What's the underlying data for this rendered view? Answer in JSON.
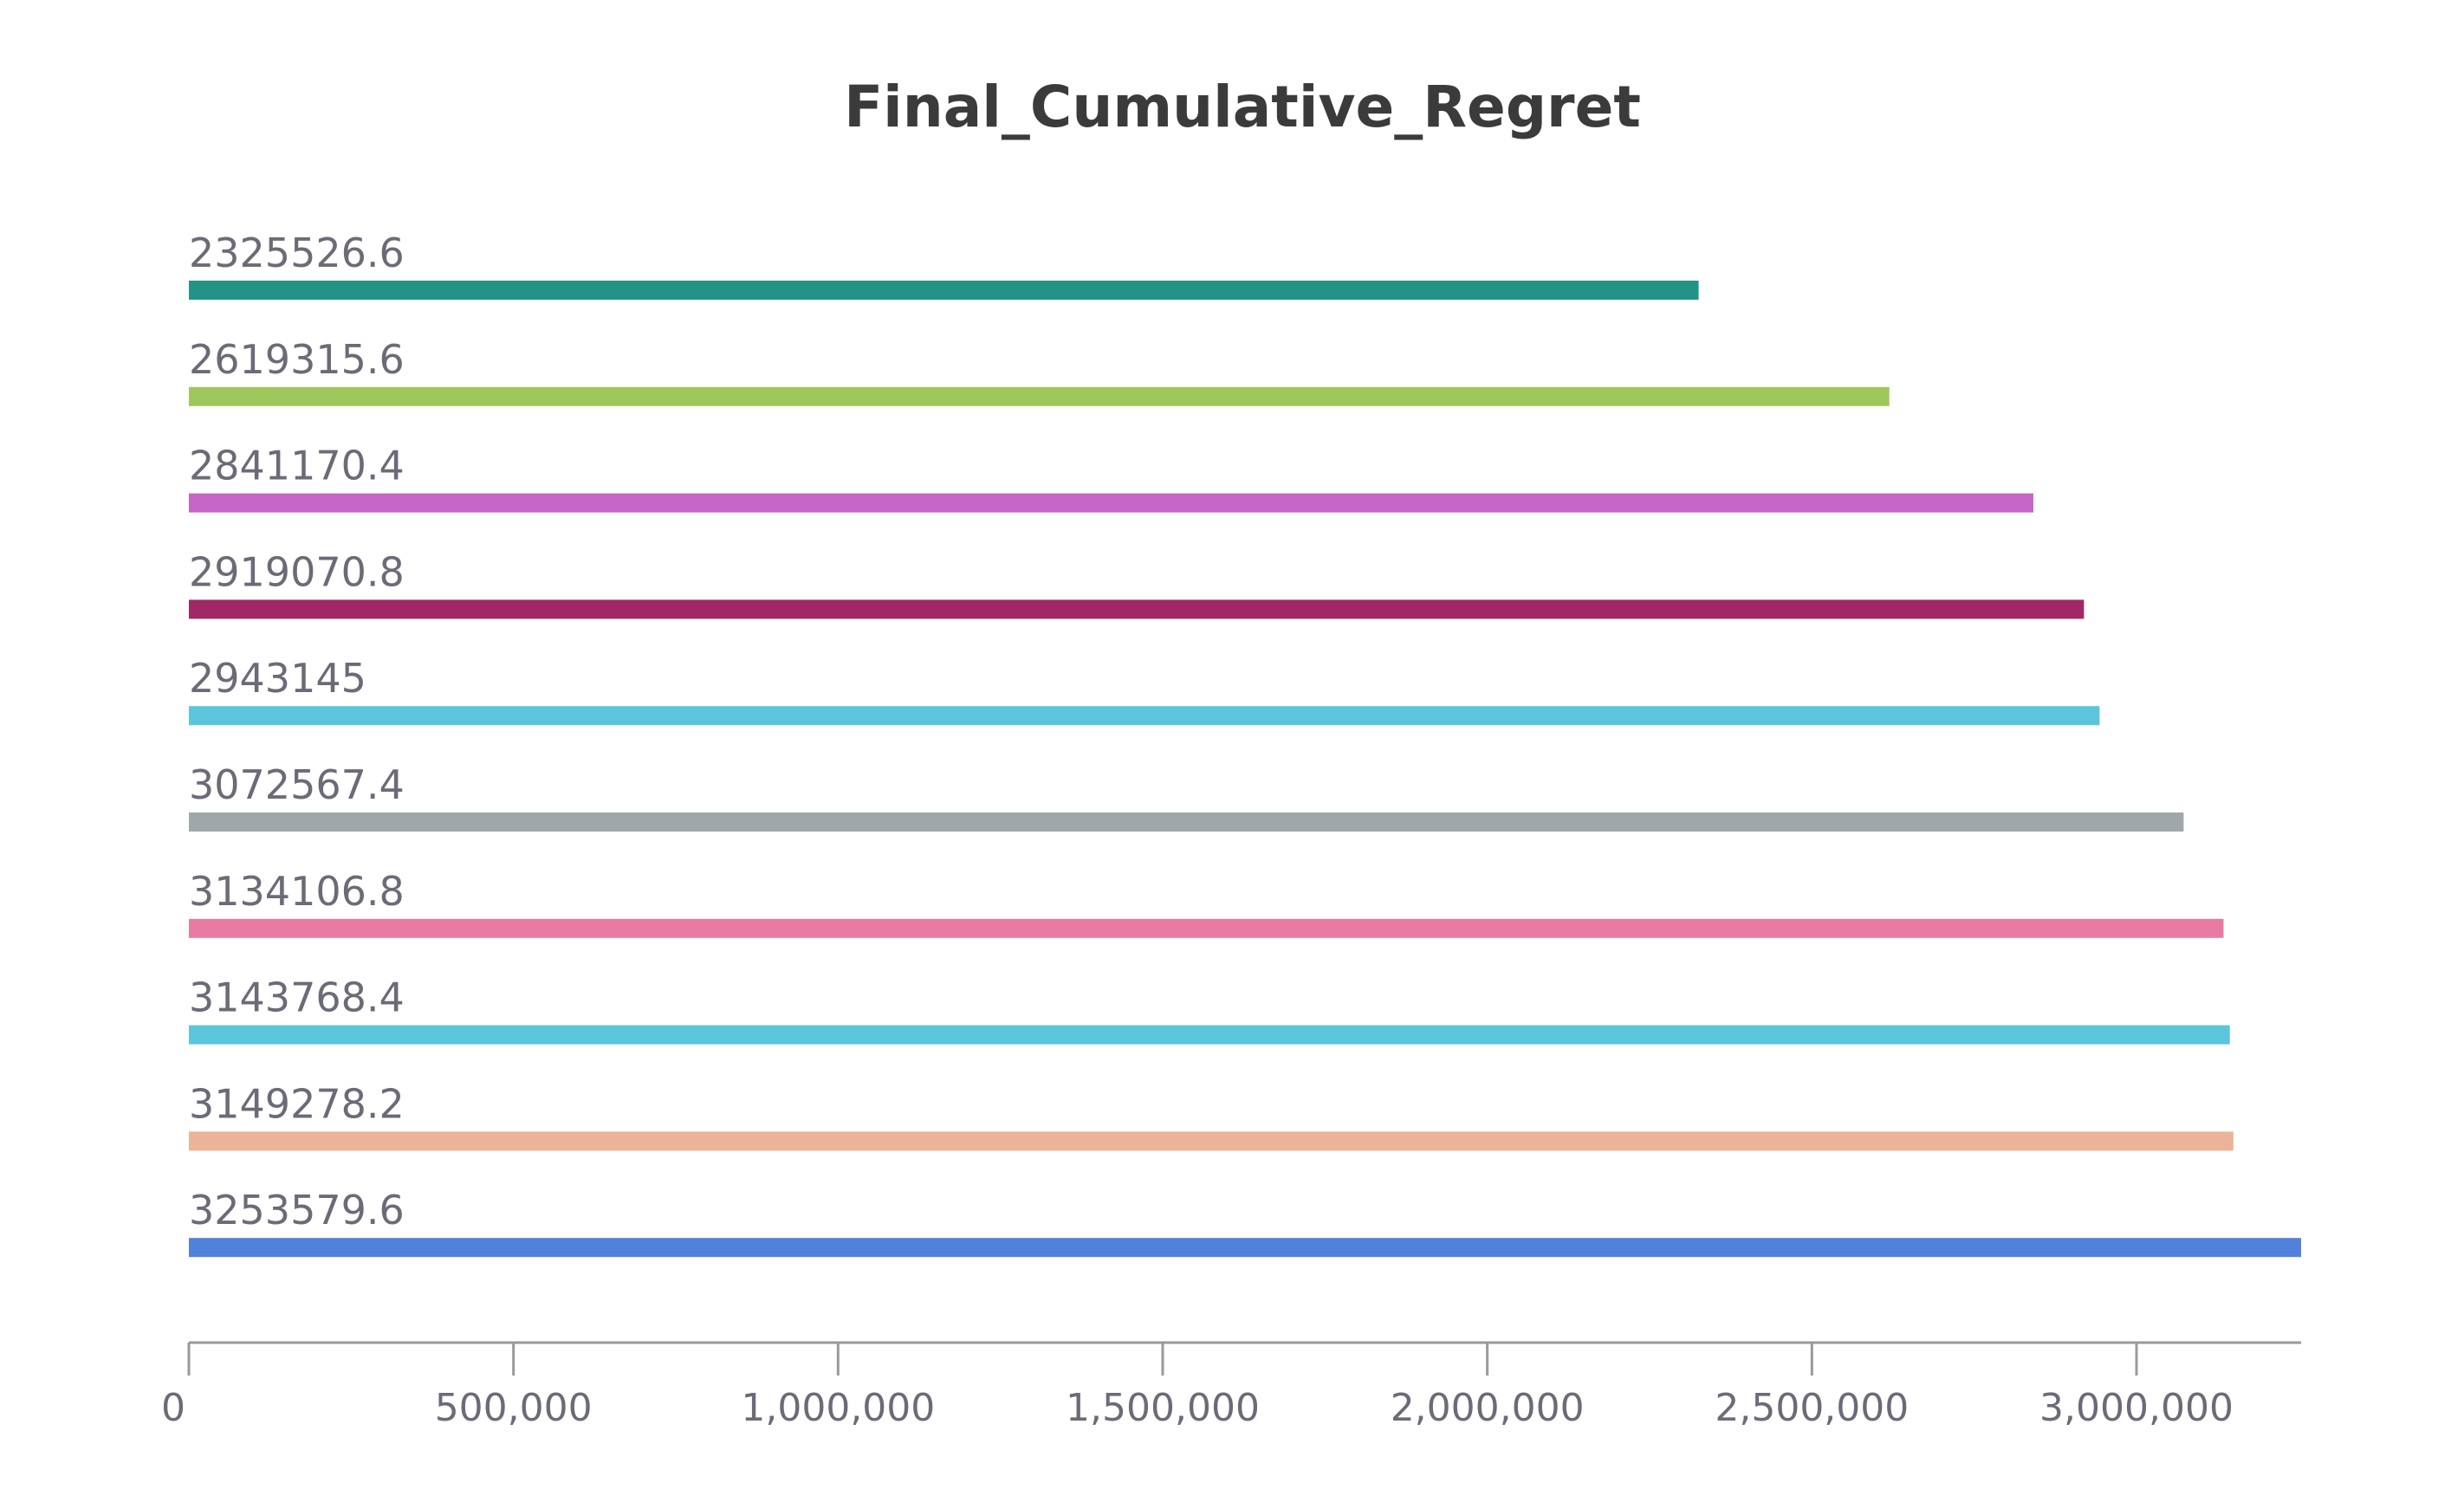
{
  "chart_data": {
    "type": "bar",
    "orientation": "horizontal",
    "title": "Final_Cumulative_Regret",
    "xlabel": "",
    "ylabel": "",
    "xlim": [
      0,
      3253579.6
    ],
    "grid": false,
    "legend": "none",
    "bars": [
      {
        "label": "2325526.6",
        "value": 2325526.6,
        "color": "#229487"
      },
      {
        "label": "2619315.6",
        "value": 2619315.6,
        "color": "#a0c75c"
      },
      {
        "label": "2841170.4",
        "value": 2841170.4,
        "color": "#c565c6"
      },
      {
        "label": "2919070.8",
        "value": 2919070.8,
        "color": "#a12864"
      },
      {
        "label": "2943145",
        "value": 2943145,
        "color": "#5bc5db"
      },
      {
        "label": "3072567.4",
        "value": 3072567.4,
        "color": "#a0a7a9"
      },
      {
        "label": "3134106.8",
        "value": 3134106.8,
        "color": "#e87ba1"
      },
      {
        "label": "3143768.4",
        "value": 3143768.4,
        "color": "#5bc5db"
      },
      {
        "label": "3149278.2",
        "value": 3149278.2,
        "color": "#ebb398"
      },
      {
        "label": "3253579.6",
        "value": 3253579.6,
        "color": "#5281db"
      }
    ],
    "x_ticks": [
      {
        "value": 0,
        "label": "0"
      },
      {
        "value": 500000,
        "label": "500,000"
      },
      {
        "value": 1000000,
        "label": "1,000,000"
      },
      {
        "value": 1500000,
        "label": "1,500,000"
      },
      {
        "value": 2000000,
        "label": "2,000,000"
      },
      {
        "value": 2500000,
        "label": "2,500,000"
      },
      {
        "value": 3000000,
        "label": "3,000,000"
      }
    ]
  }
}
